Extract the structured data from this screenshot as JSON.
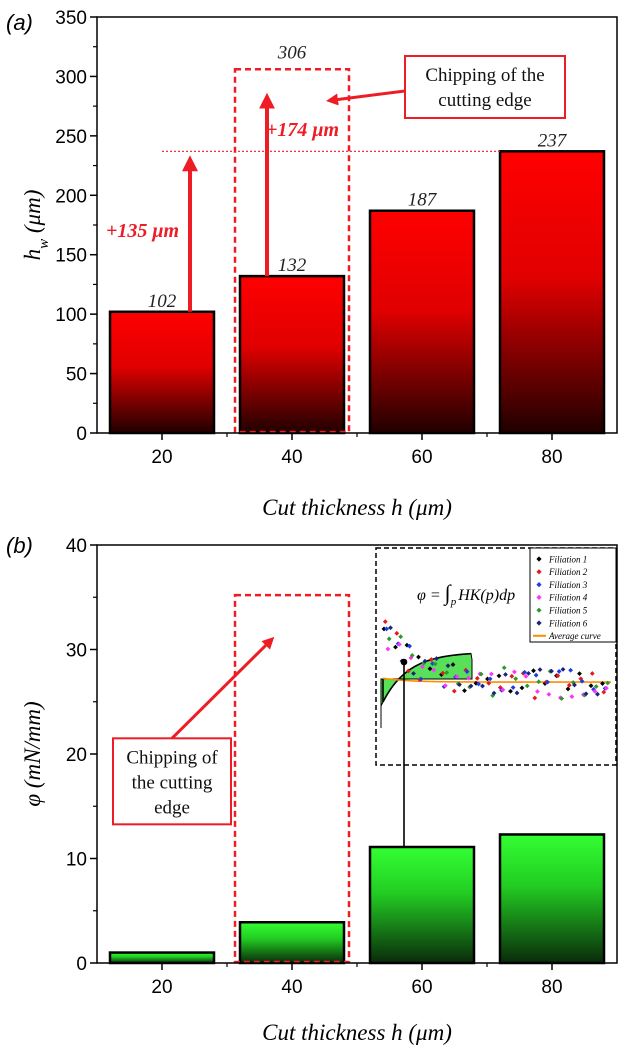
{
  "chart_data": [
    {
      "type": "bar",
      "panel_label": "(a)",
      "categories": [
        "20",
        "40",
        "60",
        "80"
      ],
      "values": [
        102,
        132,
        187,
        237
      ],
      "data_labels": [
        "102",
        "132",
        "187",
        "237"
      ],
      "xlabel": "Cut thickness h (μm)",
      "ylabel_main": "h",
      "ylabel_sub": "w",
      "ylabel_unit": " (μm)",
      "ylim": [
        0,
        350
      ],
      "yticks": [
        0,
        50,
        100,
        150,
        200,
        250,
        300,
        350
      ],
      "bar_gradient": {
        "top": "#ff0000",
        "bottom": "#200000"
      },
      "annotations": {
        "chipped_box_top_value": 306,
        "chipped_box_top_label": "306",
        "dashed_line_value": 237,
        "arrow_1": {
          "category": "20",
          "from": 102,
          "to": 237,
          "label": "+135 μm"
        },
        "arrow_2": {
          "category": "40",
          "from": 132,
          "to": 306,
          "label": "+174 μm"
        },
        "callout_lines": [
          "Chipping of the",
          "cutting edge"
        ],
        "accent_color": "#ee1c25"
      }
    },
    {
      "type": "bar",
      "panel_label": "(b)",
      "categories": [
        "20",
        "40",
        "60",
        "80"
      ],
      "values": [
        1.0,
        3.9,
        11.1,
        12.3
      ],
      "xlabel": "Cut thickness h (μm)",
      "ylabel": "φ (mN/mm)",
      "ylim": [
        0,
        40
      ],
      "yticks": [
        0,
        10,
        20,
        30,
        40
      ],
      "bar_gradient": {
        "top": "#33ff33",
        "bottom": "#0a2a0a"
      },
      "annotations": {
        "chipped_box_top_value": 35.2,
        "callout_lines": [
          "Chipping of",
          "the cutting",
          "edge"
        ],
        "accent_color": "#ee1c25"
      },
      "inset": {
        "formula_lhs": "φ = ",
        "formula_integral": "∫",
        "formula_sub": "p",
        "formula_rhs": "HK(p)dp",
        "legend": [
          {
            "name": "Filiation 1",
            "color": "#000000",
            "marker": "diamond"
          },
          {
            "name": "Filiation 2",
            "color": "#e41a1c",
            "marker": "diamond"
          },
          {
            "name": "Filiation 3",
            "color": "#1f3de0",
            "marker": "diamond"
          },
          {
            "name": "Filiation 4",
            "color": "#ff33ff",
            "marker": "diamond"
          },
          {
            "name": "Filiation 5",
            "color": "#2e9a2e",
            "marker": "diamond"
          },
          {
            "name": "Filiation 6",
            "color": "#1a237e",
            "marker": "diamond"
          },
          {
            "name": "Average curve",
            "color": "#ff8c00",
            "marker": "line"
          }
        ]
      }
    }
  ]
}
